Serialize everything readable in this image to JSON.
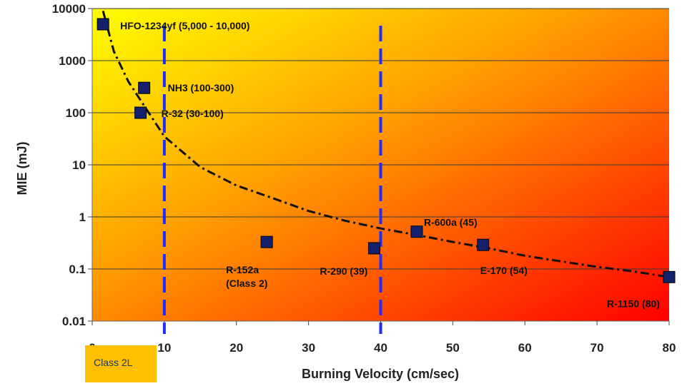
{
  "chart_data": {
    "type": "scatter",
    "title": "",
    "xlabel": "Burning Velocity (cm/sec)",
    "ylabel": "MIE (mJ)",
    "xlim": [
      0,
      80
    ],
    "ylim": [
      0.01,
      10000
    ],
    "y_scale": "log",
    "grid": "horizontal",
    "x_ticks": [
      "0",
      "10",
      "20",
      "30",
      "40",
      "50",
      "60",
      "70",
      "80"
    ],
    "y_ticks": [
      "0.01",
      "0.1",
      "1",
      "10",
      "100",
      "1000",
      "10000"
    ],
    "points": [
      {
        "label": "HFO-1234yf (5,000 - 10,000)",
        "x": 1.5,
        "y": 5000
      },
      {
        "label": "NH3 (100-300)",
        "x": 7.2,
        "y": 300
      },
      {
        "label": "R-32 (30-100)",
        "x": 6.7,
        "y": 100
      },
      {
        "label": "R-152a\n(Class 2)",
        "x": 24.2,
        "y": 0.33
      },
      {
        "label": "R-290 (39)",
        "x": 39.1,
        "y": 0.25
      },
      {
        "label": "R-600a (45)",
        "x": 45.0,
        "y": 0.52
      },
      {
        "label": "E-170 (54)",
        "x": 54.2,
        "y": 0.29
      },
      {
        "label": "R-1150 (80)",
        "x": 80.0,
        "y": 0.07
      }
    ],
    "trend_curve": [
      {
        "x": 1.5,
        "y": 9000
      },
      {
        "x": 3,
        "y": 1500
      },
      {
        "x": 5,
        "y": 400
      },
      {
        "x": 7,
        "y": 150
      },
      {
        "x": 10,
        "y": 35
      },
      {
        "x": 15,
        "y": 9
      },
      {
        "x": 20,
        "y": 4
      },
      {
        "x": 25,
        "y": 2.3
      },
      {
        "x": 30,
        "y": 1.3
      },
      {
        "x": 35,
        "y": 0.85
      },
      {
        "x": 40,
        "y": 0.6
      },
      {
        "x": 45,
        "y": 0.45
      },
      {
        "x": 50,
        "y": 0.33
      },
      {
        "x": 55,
        "y": 0.25
      },
      {
        "x": 60,
        "y": 0.18
      },
      {
        "x": 65,
        "y": 0.14
      },
      {
        "x": 70,
        "y": 0.11
      },
      {
        "x": 75,
        "y": 0.09
      },
      {
        "x": 80,
        "y": 0.07
      }
    ],
    "vertical_markers": [
      10,
      40
    ],
    "class_box_label": "Class 2L",
    "colors": {
      "marker": "#14206b",
      "vertical_lines": "#1f2bff",
      "trend": "#111111",
      "gradient_top_left": "#ffff00",
      "gradient_mid": "#ff9a00",
      "gradient_bottom_right": "#ff0000"
    }
  }
}
